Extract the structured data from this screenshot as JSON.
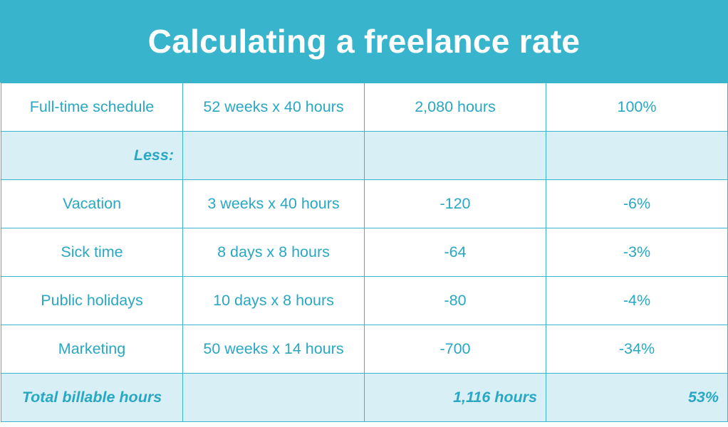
{
  "title": "Calculating a freelance rate",
  "rows": [
    {
      "label": "Full-time schedule",
      "detail": "52 weeks x 40 hours",
      "hours": "2,080 hours",
      "percent": "100%"
    },
    {
      "label": "Less:",
      "detail": "",
      "hours": "",
      "percent": ""
    },
    {
      "label": "Vacation",
      "detail": "3 weeks x 40 hours",
      "hours": "-120",
      "percent": "-6%"
    },
    {
      "label": "Sick time",
      "detail": "8 days x 8 hours",
      "hours": "-64",
      "percent": "-3%"
    },
    {
      "label": "Public holidays",
      "detail": "10 days x 8 hours",
      "hours": "-80",
      "percent": "-4%"
    },
    {
      "label": "Marketing",
      "detail": "50 weeks x 14 hours",
      "hours": "-700",
      "percent": "-34%"
    },
    {
      "label": "Total billable hours",
      "detail": "",
      "hours": "1,116 hours",
      "percent": "53%"
    }
  ],
  "colors": {
    "header_bg": "#38b4cc",
    "text": "#2aa7c2",
    "shaded_row": "#d8f0f5",
    "border": "#38b4cc"
  }
}
